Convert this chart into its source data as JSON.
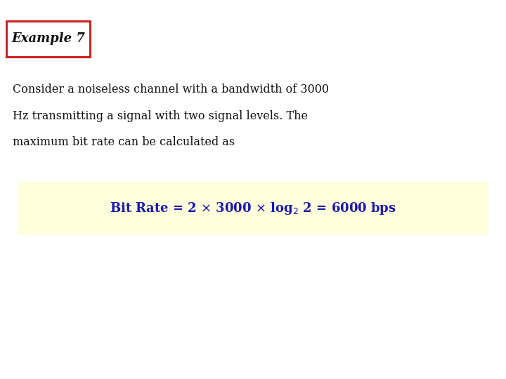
{
  "background_color": "#ffffff",
  "title_text": "Example 7",
  "title_box_color": "#ffffff",
  "title_box_edge_color": "#cc2222",
  "body_text_line1": "Consider a noiseless channel with a bandwidth of 3000",
  "body_text_line2": "Hz transmitting a signal with two signal levels. The",
  "body_text_line3": "maximum bit rate can be calculated as",
  "formula_bg_color": "#ffffdd",
  "formula_text_color": "#1a1aaa",
  "body_text_color": "#111111",
  "title_font_size": 13,
  "body_font_size": 11.5,
  "formula_font_size": 13
}
